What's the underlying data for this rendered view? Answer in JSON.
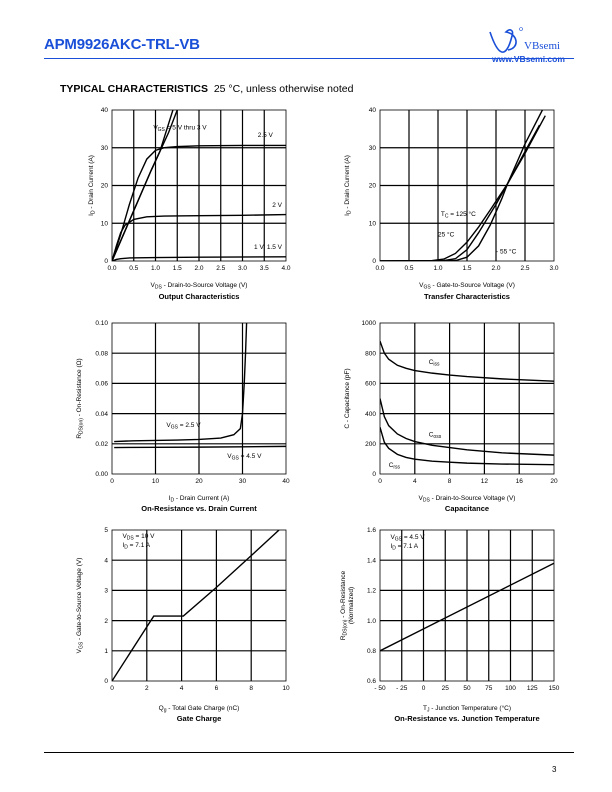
{
  "header": {
    "title": "APM9926AKC-TRL-VB",
    "logo_text": "VBsemi",
    "logo_url": "www.VBsemi.com"
  },
  "section": {
    "title": "TYPICAL CHARACTERISTICS",
    "subtitle": "25 °C, unless otherwise noted"
  },
  "page_number": "3",
  "colors": {
    "brand": "#1a4fd8",
    "line": "#000000"
  },
  "chart_data": [
    {
      "type": "line",
      "title": "Output Characteristics",
      "xlabel_main": "V",
      "xlabel_sub": "DS",
      "xlabel_rest": " - Drain-to-Source Voltage (V)",
      "ylabel_main": "I",
      "ylabel_sub": "D",
      "ylabel_rest": " - Drain Current (A)",
      "xlim": [
        0,
        4
      ],
      "ylim": [
        0,
        40
      ],
      "xticks": [
        "0.0",
        "0.5",
        "1.0",
        "1.5",
        "2.0",
        "2.5",
        "3.0",
        "3.5",
        "4.0"
      ],
      "xtick_values": [
        0,
        0.5,
        1,
        1.5,
        2,
        2.5,
        3,
        3.5,
        4
      ],
      "yticks": [
        "0",
        "10",
        "20",
        "30",
        "40"
      ],
      "ytick_values": [
        0,
        10,
        20,
        30,
        40
      ],
      "grid": true,
      "series": [
        {
          "x": [
            0,
            0.3,
            0.6,
            0.9,
            1.1,
            1.3,
            1.5
          ],
          "y": [
            0,
            8,
            16,
            24,
            29,
            34,
            40
          ]
        },
        {
          "x": [
            0,
            0.3,
            0.6,
            0.9,
            1.1,
            1.4
          ],
          "y": [
            0,
            8,
            16,
            24,
            29,
            40
          ]
        },
        {
          "x": [
            0,
            0.2,
            0.4,
            0.6,
            0.8,
            1.0,
            1.2,
            1.5,
            2,
            3,
            4
          ],
          "y": [
            0,
            7,
            15,
            22,
            27,
            29.3,
            30,
            30.3,
            30.5,
            30.6,
            30.6
          ]
        },
        {
          "x": [
            0,
            0.1,
            0.2,
            0.3,
            0.5,
            0.8,
            1.2,
            2,
            3,
            4
          ],
          "y": [
            0,
            4,
            7.5,
            9.5,
            11,
            11.7,
            11.9,
            12,
            12.1,
            12.3
          ]
        },
        {
          "x": [
            0,
            0.1,
            0.2,
            0.4,
            1,
            2,
            4
          ],
          "y": [
            0,
            0.4,
            0.6,
            0.8,
            0.9,
            1,
            1.1
          ]
        }
      ],
      "annotations": [
        {
          "main": "V",
          "sub": "GS",
          "rest": " = 5 V thru 3 V",
          "x": 0.95,
          "y": 34.8
        },
        {
          "main": "",
          "sub": "",
          "rest": "2.5 V",
          "x": 3.35,
          "y": 32.8
        },
        {
          "main": "",
          "sub": "",
          "rest": "2 V",
          "x": 4.0,
          "y": 14.3
        },
        {
          "main": "",
          "sub": "",
          "rest": "1 V, 1.5 V",
          "x": 4.0,
          "y": 3.2
        }
      ]
    },
    {
      "type": "line",
      "title": "Transfer Characteristics",
      "xlabel_main": "V",
      "xlabel_sub": "GS",
      "xlabel_rest": " - Gate-to-Source Voltage (V)",
      "ylabel_main": "I",
      "ylabel_sub": "D",
      "ylabel_rest": " - Drain Current (A)",
      "xlim": [
        0,
        3
      ],
      "ylim": [
        0,
        40
      ],
      "xticks": [
        "0.0",
        "0.5",
        "1.0",
        "1.5",
        "2.0",
        "2.5",
        "3.0"
      ],
      "xtick_values": [
        0,
        0.5,
        1,
        1.5,
        2,
        2.5,
        3
      ],
      "yticks": [
        "0",
        "10",
        "20",
        "30",
        "40"
      ],
      "ytick_values": [
        0,
        10,
        20,
        30,
        40
      ],
      "grid": true,
      "series": [
        {
          "x": [
            0,
            0.9,
            1.1,
            1.3,
            1.5,
            1.7,
            1.9,
            2.2,
            2.5,
            2.75
          ],
          "y": [
            0,
            0.1,
            0.5,
            2,
            5,
            9,
            13.5,
            20.5,
            29,
            36
          ]
        },
        {
          "x": [
            0,
            1.1,
            1.3,
            1.5,
            1.7,
            2.0,
            2.2,
            2.5,
            2.85
          ],
          "y": [
            0,
            0.1,
            0.6,
            3,
            7.5,
            15,
            20.5,
            28.5,
            38.5
          ]
        },
        {
          "x": [
            0,
            1.3,
            1.5,
            1.7,
            1.9,
            2.1,
            2.2,
            2.5,
            2.8,
            2.95
          ],
          "y": [
            0,
            0.1,
            1,
            4,
            9.5,
            16.5,
            20.5,
            31,
            40,
            44
          ]
        }
      ],
      "annotations": [
        {
          "main": "T",
          "sub": "C",
          "rest": " = 125 °C",
          "x": 1.05,
          "y": 11.9
        },
        {
          "main": "",
          "sub": "",
          "rest": "25 °C",
          "x": 1.0,
          "y": 6.5
        },
        {
          "main": "",
          "sub": "",
          "rest": "- 55 °C",
          "x": 2.0,
          "y": 2.0
        }
      ]
    },
    {
      "type": "line",
      "title": "On-Resistance vs. Drain Current",
      "xlabel_main": "I",
      "xlabel_sub": "D",
      "xlabel_rest": " - Drain Current (A)",
      "ylabel_main": "R",
      "ylabel_sub": "DS(on)",
      "ylabel_rest": " - On-Resistance (Ω)",
      "xlim": [
        0,
        40
      ],
      "ylim": [
        0,
        0.1
      ],
      "xticks": [
        "0",
        "10",
        "20",
        "30",
        "40"
      ],
      "xtick_values": [
        0,
        10,
        20,
        30,
        40
      ],
      "yticks": [
        "0.00",
        "0.02",
        "0.04",
        "0.06",
        "0.08",
        "0.10"
      ],
      "ytick_values": [
        0,
        0.02,
        0.04,
        0.06,
        0.08,
        0.1
      ],
      "grid": true,
      "series": [
        {
          "x": [
            0.5,
            5,
            10,
            15,
            20,
            25,
            28,
            29.5,
            30,
            30.4,
            30.7,
            31
          ],
          "y": [
            0.0215,
            0.022,
            0.0222,
            0.0225,
            0.0229,
            0.0238,
            0.026,
            0.03,
            0.04,
            0.06,
            0.08,
            0.105
          ]
        },
        {
          "x": [
            0.5,
            10,
            20,
            30,
            40
          ],
          "y": [
            0.0175,
            0.0177,
            0.0178,
            0.018,
            0.0183
          ]
        }
      ],
      "annotations": [
        {
          "main": "V",
          "sub": "GS",
          "rest": " = 2.5 V",
          "x": 12.5,
          "y": 0.031
        },
        {
          "main": "V",
          "sub": "GS",
          "rest": " = 4.5 V",
          "x": 26.5,
          "y": 0.0105
        }
      ]
    },
    {
      "type": "line",
      "title": "Capacitance",
      "xlabel_main": "V",
      "xlabel_sub": "DS",
      "xlabel_rest": " - Drain-to-Source Voltage (V)",
      "ylabel_main": "",
      "ylabel_sub": "",
      "ylabel_rest": "C - Capacitance (pF)",
      "xlim": [
        0,
        20
      ],
      "ylim": [
        0,
        1000
      ],
      "xticks": [
        "0",
        "4",
        "8",
        "12",
        "16",
        "20"
      ],
      "xtick_values": [
        0,
        4,
        8,
        12,
        16,
        20
      ],
      "yticks": [
        "0",
        "200",
        "400",
        "600",
        "800",
        "1000"
      ],
      "ytick_values": [
        0,
        200,
        400,
        600,
        800,
        1000
      ],
      "grid": true,
      "series": [
        {
          "x": [
            0,
            0.5,
            1,
            2,
            3,
            4,
            6,
            8,
            10,
            14,
            20
          ],
          "y": [
            880,
            800,
            760,
            720,
            700,
            685,
            668,
            655,
            645,
            630,
            615
          ]
        },
        {
          "x": [
            0,
            0.5,
            1,
            2,
            3,
            4,
            6,
            8,
            10,
            14,
            20
          ],
          "y": [
            500,
            380,
            320,
            265,
            235,
            215,
            190,
            175,
            160,
            140,
            125
          ]
        },
        {
          "x": [
            0,
            0.5,
            1,
            2,
            3,
            4,
            6,
            8,
            10,
            14,
            20
          ],
          "y": [
            310,
            210,
            170,
            130,
            110,
            98,
            85,
            78,
            72,
            66,
            62
          ]
        }
      ],
      "annotations": [
        {
          "main": "C",
          "sub": "iss",
          "rest": "",
          "x": 5.6,
          "y": 730
        },
        {
          "main": "C",
          "sub": "oss",
          "rest": "",
          "x": 5.6,
          "y": 250
        },
        {
          "main": "C",
          "sub": "rss",
          "rest": "",
          "x": 1.0,
          "y": 45
        }
      ]
    },
    {
      "type": "line",
      "title": "Gate Charge",
      "xlabel_main": "Q",
      "xlabel_sub": "g",
      "xlabel_rest": " - Total Gate Charge (nC)",
      "ylabel_main": "V",
      "ylabel_sub": "GS",
      "ylabel_rest": " - Gate-to-Source Voltage (V)",
      "xlim": [
        0,
        10
      ],
      "ylim": [
        0,
        5
      ],
      "xticks": [
        "0",
        "2",
        "4",
        "6",
        "8",
        "10"
      ],
      "xtick_values": [
        0,
        2,
        4,
        6,
        8,
        10
      ],
      "yticks": [
        "0",
        "1",
        "2",
        "3",
        "4",
        "5"
      ],
      "ytick_values": [
        0,
        1,
        2,
        3,
        4,
        5
      ],
      "grid": true,
      "series": [
        {
          "x": [
            0,
            2.4,
            4.1,
            6,
            8,
            9.6
          ],
          "y": [
            0,
            2.15,
            2.15,
            3.1,
            4.15,
            5
          ]
        }
      ],
      "annotations": [
        {
          "main": "V",
          "sub": "DS",
          "rest": " = 10 V",
          "x": 0.6,
          "y": 4.73
        },
        {
          "main": "I",
          "sub": "D",
          "rest": " = 7.1 A",
          "x": 0.6,
          "y": 4.43
        }
      ]
    },
    {
      "type": "line",
      "title": "On-Resistance vs. Junction Temperature",
      "xlabel_main": "T",
      "xlabel_sub": "J",
      "xlabel_rest": " - Junction Temperature (°C)",
      "ylabel_main": "R",
      "ylabel_sub": "DS(on)",
      "ylabel_rest": " - On-Resistance",
      "ylabel_line2": "(Normalized)",
      "xlim": [
        -50,
        150
      ],
      "ylim": [
        0.6,
        1.6
      ],
      "xticks": [
        "- 50",
        "- 25",
        "0",
        "25",
        "50",
        "75",
        "100",
        "125",
        "150"
      ],
      "xtick_values": [
        -50,
        -25,
        0,
        25,
        50,
        75,
        100,
        125,
        150
      ],
      "yticks": [
        "0.6",
        "0.8",
        "1.0",
        "1.2",
        "1.4",
        "1.6"
      ],
      "ytick_values": [
        0.6,
        0.8,
        1.0,
        1.2,
        1.4,
        1.6
      ],
      "grid": true,
      "series": [
        {
          "x": [
            -50,
            150
          ],
          "y": [
            0.8,
            1.38
          ]
        }
      ],
      "annotations": [
        {
          "main": "V",
          "sub": "GS",
          "rest": " = 4.5 V",
          "x": -38,
          "y": 1.54
        },
        {
          "main": "I",
          "sub": "D",
          "rest": " = 7.1 A",
          "x": -38,
          "y": 1.48
        }
      ]
    }
  ]
}
